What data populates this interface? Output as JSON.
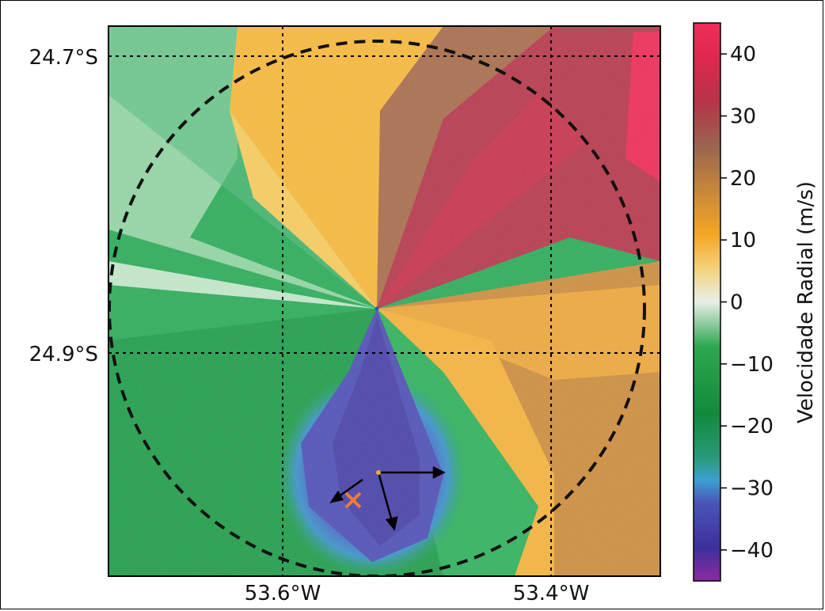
{
  "map": {
    "lat_labels": [
      "24.7°S",
      "24.9°S"
    ],
    "lon_labels": [
      "53.6°W",
      "53.4°W"
    ],
    "graticule": "dotted",
    "range_ring": "dashed circle"
  },
  "colorbar": {
    "label": "Velocidade Radial (m/s)",
    "tick_labels": [
      "40",
      "30",
      "20",
      "10",
      "0",
      "−10",
      "−20",
      "−30",
      "−40"
    ],
    "ticks": [
      40,
      30,
      20,
      10,
      0,
      -10,
      -20,
      -30,
      -40
    ],
    "range": [
      -45,
      45
    ],
    "colors": [
      "#8e2aa0",
      "#3a3aa8",
      "#4aa9d6",
      "#1d9a4a",
      "#5fbf76",
      "#f0f0f0",
      "#f2a93a",
      "#9a6a4a",
      "#b9344a",
      "#e8285a"
    ]
  },
  "markers": {
    "center_x_color": "#f07a3a",
    "arrow_color": "#000000"
  }
}
